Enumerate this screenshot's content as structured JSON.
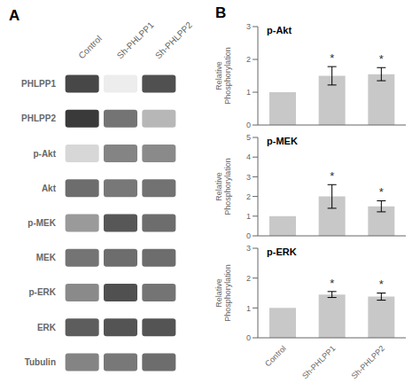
{
  "chart_data": [
    {
      "type": "heatmap",
      "title": "A",
      "categories": [
        "Control",
        "Sh-PHLPP1",
        "Sh-PHLPP2"
      ],
      "rows": [
        "PHLPP1",
        "PHLPP2",
        "p-Akt",
        "Akt",
        "p-MEK",
        "MEK",
        "p-ERK",
        "ERK",
        "Tubulin"
      ],
      "cells": [
        [
          0.82,
          0.08,
          0.78
        ],
        [
          0.88,
          0.62,
          0.32
        ],
        [
          0.18,
          0.55,
          0.52
        ],
        [
          0.65,
          0.6,
          0.63
        ],
        [
          0.45,
          0.75,
          0.65
        ],
        [
          0.62,
          0.65,
          0.65
        ],
        [
          0.52,
          0.78,
          0.62
        ],
        [
          0.72,
          0.76,
          0.76
        ],
        [
          0.55,
          0.6,
          0.65
        ]
      ]
    },
    {
      "type": "bar",
      "title": "B",
      "annotation": "p-Akt",
      "ylabel": "Relative\nPhosphorylation",
      "categories": [
        "Control",
        "Sh-PHLPP1",
        "Sh-PHLPP2"
      ],
      "values": [
        1.0,
        1.5,
        1.55
      ],
      "errors": [
        0.0,
        0.28,
        0.2
      ],
      "significant": [
        false,
        true,
        true
      ],
      "significant_mark": "*",
      "color": "#c8c8c8",
      "ylim": [
        0.0,
        3.0
      ],
      "yticks": [
        0,
        1,
        2,
        3
      ],
      "grid": false,
      "tick_labels": "y"
    },
    {
      "type": "bar",
      "annotation": "p-MEK",
      "ylabel": "Relative\nPhosphorylation",
      "categories": [
        "Control",
        "Sh-PHLPP1",
        "Sh-PHLPP2"
      ],
      "values": [
        1.0,
        2.0,
        1.5
      ],
      "errors": [
        0.0,
        0.6,
        0.28
      ],
      "significant": [
        false,
        true,
        true
      ],
      "significant_mark": "*",
      "color": "#c8c8c8",
      "ylim": [
        0.0,
        5.0
      ],
      "yticks": [
        0,
        1,
        2,
        3,
        4,
        5
      ],
      "grid": false,
      "tick_labels": "y"
    },
    {
      "type": "bar",
      "annotation": "p-ERK",
      "ylabel": "Relative\nPhosphorylation",
      "categories": [
        "Control",
        "Sh-PHLPP1",
        "Sh-PHLPP2"
      ],
      "values": [
        1.0,
        1.45,
        1.38
      ],
      "errors": [
        0.0,
        0.1,
        0.12
      ],
      "significant": [
        false,
        true,
        true
      ],
      "significant_mark": "*",
      "color": "#c8c8c8",
      "ylim": [
        0.0,
        3.0
      ],
      "yticks": [
        0,
        1,
        2,
        3
      ],
      "grid": false
    }
  ]
}
